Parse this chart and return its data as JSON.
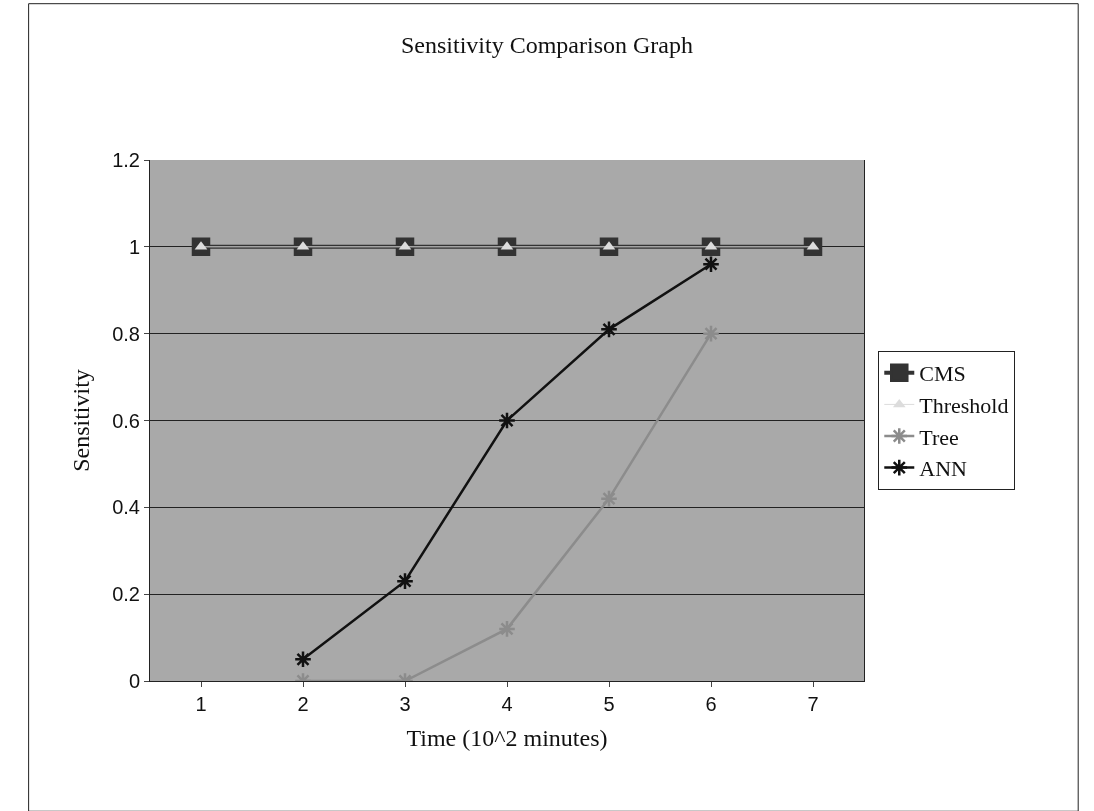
{
  "chart_data": {
    "type": "line",
    "title": "Sensitivity Comparison Graph",
    "xlabel": "Time (10^2 minutes)",
    "ylabel": "Sensitivity",
    "categories": [
      "1",
      "2",
      "3",
      "4",
      "5",
      "6",
      "7"
    ],
    "series": [
      {
        "name": "CMS",
        "color": "#333333",
        "marker": "square",
        "values": [
          1,
          1,
          1,
          1,
          1,
          1,
          1
        ]
      },
      {
        "name": "Threshold",
        "color": "#dcdcdc",
        "marker": "triangle",
        "values": [
          1,
          1,
          1,
          1,
          1,
          1,
          1
        ]
      },
      {
        "name": "Tree",
        "color": "#8c8c8c",
        "marker": "cross",
        "values": [
          null,
          0,
          0,
          0.12,
          0.42,
          0.8,
          null
        ]
      },
      {
        "name": "ANN",
        "color": "#111111",
        "marker": "cross",
        "values": [
          null,
          0.05,
          0.23,
          0.6,
          0.81,
          0.96,
          null
        ]
      }
    ],
    "ylim": [
      0,
      1.2
    ],
    "yticks": [
      0,
      0.2,
      0.4,
      0.6,
      0.8,
      1,
      1.2
    ],
    "grid": "y",
    "legend": "right"
  }
}
